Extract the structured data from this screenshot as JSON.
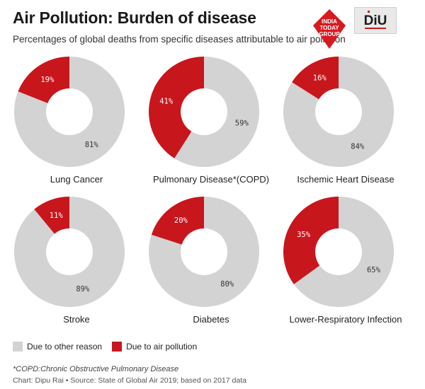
{
  "header": {
    "title": "Air Pollution: Burden of disease",
    "subtitle": "Percentages of global deaths from specific diseases attributable to air pollution"
  },
  "logos": {
    "itg_lines": [
      "INDIA",
      "TODAY",
      "GROUP"
    ],
    "diu_text": "DiU"
  },
  "colors": {
    "other": "#d3d3d3",
    "air": "#c8161d"
  },
  "chart_data": {
    "type": "pie",
    "variant": "donut",
    "series_names": [
      "Due to air pollution",
      "Due to other reason"
    ],
    "charts": [
      {
        "label": "Lung Cancer",
        "air": 19,
        "other": 81
      },
      {
        "label": "Pulmonary Disease*(COPD)",
        "air": 41,
        "other": 59
      },
      {
        "label": "Ischemic Heart Disease",
        "air": 16,
        "other": 84
      },
      {
        "label": "Stroke",
        "air": 11,
        "other": 89
      },
      {
        "label": "Diabetes",
        "air": 20,
        "other": 80
      },
      {
        "label": "Lower-Respiratory Infection",
        "air": 35,
        "other": 65
      }
    ]
  },
  "legend": {
    "other_label": "Due to other reason",
    "air_label": "Due to air pollution"
  },
  "footer": {
    "footnote": "*COPD:Chronic Obstructive Pulmonary Disease",
    "source": "Chart: Dipu Rai • Source: State of Global Air 2019; based on 2017 data"
  }
}
